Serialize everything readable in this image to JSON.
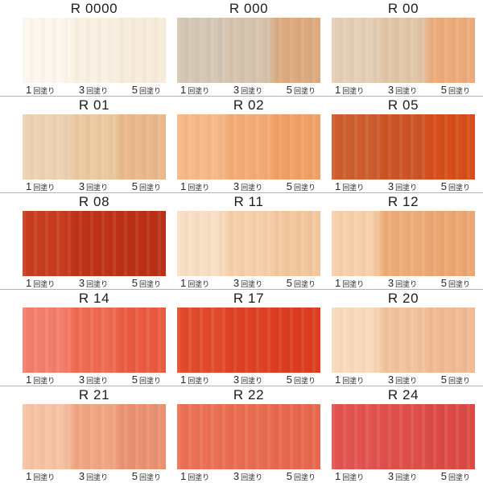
{
  "page": {
    "background": "#ffffff",
    "divider_color": "#e59bac"
  },
  "coat_labels": [
    {
      "count": "1",
      "unit": "回塗り"
    },
    {
      "count": "3",
      "unit": "回塗り"
    },
    {
      "count": "5",
      "unit": "回塗り"
    }
  ],
  "grid": {
    "columns": 3,
    "rows": 5
  },
  "swatches": [
    {
      "code": "R 0000",
      "coat_colors": [
        "#fcf7ee",
        "#f9f1e2",
        "#f7ecd9"
      ]
    },
    {
      "code": "R 000",
      "coat_colors": [
        "#d4c7b5",
        "#d5c3ad",
        "#dcaa7e"
      ]
    },
    {
      "code": "R 00",
      "coat_colors": [
        "#e4ceb5",
        "#e1c5a7",
        "#ecab7b"
      ]
    },
    {
      "code": "R 01",
      "coat_colors": [
        "#ecd2b2",
        "#ebc9a1",
        "#eab88b"
      ]
    },
    {
      "code": "R 02",
      "coat_colors": [
        "#f6b988",
        "#f3ab74",
        "#f0a065"
      ]
    },
    {
      "code": "R 05",
      "coat_colors": [
        "#cd5d2f",
        "#cd5425",
        "#d54e1b"
      ]
    },
    {
      "code": "R 08",
      "coat_colors": [
        "#c63d20",
        "#bd3318",
        "#ba3016"
      ]
    },
    {
      "code": "R 11",
      "coat_colors": [
        "#f8dfc4",
        "#f5cfa9",
        "#f3c79e"
      ]
    },
    {
      "code": "R 12",
      "coat_colors": [
        "#f6d0ab",
        "#eeab77",
        "#eba671"
      ]
    },
    {
      "code": "R 14",
      "coat_colors": [
        "#f47e6c",
        "#ef6a52",
        "#e95b40"
      ]
    },
    {
      "code": "R 17",
      "coat_colors": [
        "#e14b2c",
        "#de4123",
        "#dc3c1f"
      ]
    },
    {
      "code": "R 20",
      "coat_colors": [
        "#f8dabb",
        "#f2c29d",
        "#f0ba93"
      ]
    },
    {
      "code": "R 21",
      "coat_colors": [
        "#f5c3a4",
        "#f0a582",
        "#ea9172"
      ]
    },
    {
      "code": "R 22",
      "coat_colors": [
        "#eb7055",
        "#e96c51",
        "#e6684f"
      ]
    },
    {
      "code": "R 24",
      "coat_colors": [
        "#e25450",
        "#df4f4a",
        "#db4a44"
      ]
    }
  ]
}
